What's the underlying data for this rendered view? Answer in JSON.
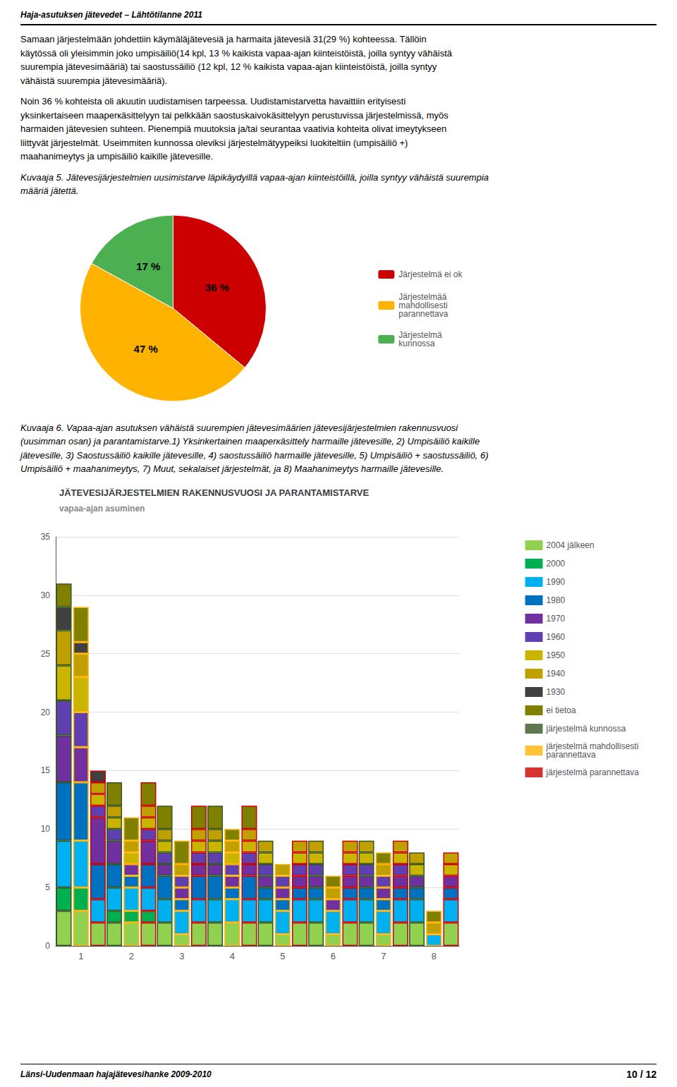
{
  "header": "Haja-asutuksen jätevedet – Lähtötilanne 2011",
  "annotations": [
    "Samaan järjestelmään johdettiin käymäläjätevesiä ja harmaita jätevesiä 31(29 %) kohteessa. Tällöin\nkäytössä oli yleisimmin joko umpisäiliö(14 kpl, 13 % kaikista vapaa-ajan kiinteistöistä, joilla syntyy vähäistä\nsuurempia jätevesimääriä) tai saostussäiliö (12 kpl, 12 % kaikista vapaa-ajan kiinteistöistä, joilla syntyy\nvähäistä suurempia jätevesimääriä).",
    "Noin 36 % kohteista oli akuutin uudistamisen tarpeessa. Uudistamistarvetta havaittiin erityisesti\nyksinkertaiseen maaperкäsittelyyn tai pelkkään saostuskaivokäsittelyyn perustuvissa järjestelmissä, myös\nharmaiden jätevesien suhteen. Pienempiä muutoksia ja/tai seurantaa vaativia kohteita olivat imeytykseen\nliittyvät järjestelmät. Useimmiten kunnossa oleviksi järjestelmätyypeiksi luokiteltiin (umpisäiliö +)\nmaahanimeytys ja umpisäiliö kaikille jätevesille."
  ],
  "footer": [
    "Länsi-Uudenmaan hajajätevesihanke 2009-2010",
    "10 / 12"
  ],
  "chart_data": [
    {
      "type": "pie",
      "title": "Kuvaaja 5. Jätevesijärjestelmien uusimistarve läpikäydyillä vapaa-ajan kiinteistöillä, joilla syntyy vähäistä suurempia\nmääriä jätettä.",
      "categories": [
        "Järjestelmä ei ok",
        "Järjestelmää\nmahdollisesti\nparannettava",
        "Järjestelmä\nkunnossa"
      ],
      "values": [
        36,
        47,
        17
      ],
      "value_labels": [
        "36 %",
        "47 %",
        "17 %"
      ],
      "colors": [
        "#CC0000",
        "#FFB300",
        "#4CAF50"
      ],
      "data_labels": true,
      "legend": "right"
    },
    {
      "type": "bar",
      "title": "JÄTEVESIJÄRJESTELMIEN RAKENNUSVUOSI JA PARANTAMISTARVE",
      "subtitle": "vapaa-ajan asuminen",
      "annotations": [
        "Kuvaaja 6. Vapaa-ajan asutuksen vähäistä suurempien jätevesimäärien jätevesijärjestelmien rakennusvuosi\n(uusimman osan) ja parantamistarve.1) Yksinkertainen maaperкäsittely harmaille jätevesille, 2) Umpisäiliö kaikille\njätevesille, 3) Saostussäiliö kaikille jätevesille, 4) saostussäiliö harmaille jätevesille, 5) Umpisäiliö + saostussäiliö, 6)\nUmpisäiliö + maahanimeytys, 7) Muut, sekalaiset järjestelmät, ja 8) Maahanimeytys harmaille jätevesille."
      ],
      "categories": [
        "1",
        "2",
        "3",
        "4",
        "5",
        "6",
        "7",
        "8"
      ],
      "stacked": true,
      "series": [
        {
          "name": "järjestelmä kunnossa",
          "color": "#375623",
          "series": [
            {
              "name": "2004 jälkeen",
              "color": "#92D050",
              "values": [
                3,
                2,
                2,
                2,
                2,
                2,
                2,
                2
              ]
            },
            {
              "name": "2000",
              "color": "#00B050",
              "values": [
                2,
                1,
                0,
                0,
                0,
                0,
                0,
                0
              ]
            },
            {
              "name": "1990",
              "color": "#00B0F0",
              "values": [
                4,
                2,
                2,
                2,
                2,
                2,
                2,
                2
              ]
            },
            {
              "name": "1980",
              "color": "#0070C0",
              "values": [
                5,
                2,
                2,
                2,
                1,
                1,
                1,
                1
              ]
            },
            {
              "name": "1970",
              "color": "#7030A0",
              "values": [
                4,
                2,
                1,
                1,
                1,
                1,
                1,
                1
              ]
            },
            {
              "name": "1960",
              "color": "#6040B0",
              "values": [
                3,
                1,
                1,
                1,
                1,
                1,
                1,
                0
              ]
            },
            {
              "name": "1950",
              "color": "#C9B400",
              "values": [
                3,
                1,
                1,
                1,
                1,
                1,
                1,
                1
              ]
            },
            {
              "name": "1940",
              "color": "#BFA000",
              "values": [
                3,
                1,
                1,
                1,
                1,
                1,
                1,
                1
              ]
            },
            {
              "name": "1930",
              "color": "#404040",
              "values": [
                2,
                0,
                0,
                0,
                0,
                0,
                0,
                0
              ]
            },
            {
              "name": "ei tietoa",
              "color": "#808000",
              "values": [
                2,
                2,
                2,
                2,
                0,
                0,
                0,
                0
              ]
            }
          ]
        },
        {
          "name": "järjestelmä mahdollisesti\nparannettava",
          "color": "#FFB300",
          "series": [
            {
              "name": "2004 jälkeen",
              "color": "#92D050",
              "values": [
                3,
                2,
                1,
                2,
                1,
                1,
                1,
                0
              ]
            },
            {
              "name": "2000",
              "color": "#00B050",
              "values": [
                2,
                1,
                0,
                0,
                0,
                0,
                0,
                0
              ]
            },
            {
              "name": "1990",
              "color": "#00B0F0",
              "values": [
                4,
                2,
                2,
                2,
                2,
                2,
                2,
                1
              ]
            },
            {
              "name": "1980",
              "color": "#0070C0",
              "values": [
                5,
                1,
                1,
                1,
                1,
                0,
                1,
                0
              ]
            },
            {
              "name": "1970",
              "color": "#7030A0",
              "values": [
                3,
                1,
                1,
                1,
                1,
                1,
                1,
                0
              ]
            },
            {
              "name": "1960",
              "color": "#6040B0",
              "values": [
                3,
                0,
                1,
                1,
                1,
                0,
                1,
                0
              ]
            },
            {
              "name": "1950",
              "color": "#C9B400",
              "values": [
                3,
                1,
                0,
                1,
                0,
                0,
                0,
                0
              ]
            },
            {
              "name": "1940",
              "color": "#BFA000",
              "values": [
                2,
                1,
                1,
                1,
                1,
                1,
                1,
                1
              ]
            },
            {
              "name": "1930",
              "color": "#404040",
              "values": [
                1,
                0,
                0,
                0,
                0,
                0,
                0,
                0
              ]
            },
            {
              "name": "ei tietoa",
              "color": "#808000",
              "values": [
                3,
                2,
                2,
                1,
                0,
                1,
                1,
                1
              ]
            }
          ]
        },
        {
          "name": "järjestelmä parannettava",
          "color": "#CC0000",
          "series": [
            {
              "name": "2004 jälkeen",
              "color": "#92D050",
              "values": [
                2,
                2,
                2,
                2,
                2,
                2,
                2,
                2
              ]
            },
            {
              "name": "2000",
              "color": "#00B050",
              "values": [
                0,
                1,
                0,
                0,
                0,
                0,
                0,
                0
              ]
            },
            {
              "name": "1990",
              "color": "#00B0F0",
              "values": [
                2,
                2,
                2,
                2,
                2,
                2,
                2,
                2
              ]
            },
            {
              "name": "1980",
              "color": "#0070C0",
              "values": [
                3,
                2,
                2,
                2,
                1,
                1,
                1,
                1
              ]
            },
            {
              "name": "1970",
              "color": "#7030A0",
              "values": [
                4,
                2,
                1,
                1,
                1,
                1,
                1,
                1
              ]
            },
            {
              "name": "1960",
              "color": "#6040B0",
              "values": [
                1,
                1,
                1,
                1,
                1,
                1,
                1,
                0
              ]
            },
            {
              "name": "1950",
              "color": "#C9B400",
              "values": [
                1,
                1,
                1,
                1,
                1,
                1,
                1,
                1
              ]
            },
            {
              "name": "1940",
              "color": "#BFA000",
              "values": [
                1,
                1,
                1,
                1,
                1,
                1,
                1,
                1
              ]
            },
            {
              "name": "1930",
              "color": "#404040",
              "values": [
                1,
                0,
                0,
                0,
                0,
                0,
                0,
                0
              ]
            },
            {
              "name": "ei tietoa",
              "color": "#808000",
              "values": [
                0,
                2,
                2,
                2,
                0,
                0,
                0,
                0
              ]
            }
          ]
        }
      ],
      "ylim": [
        0,
        35
      ],
      "yticks": [
        0,
        5,
        10,
        15,
        20,
        25,
        30,
        35
      ],
      "grid": true,
      "legend": "right"
    }
  ]
}
